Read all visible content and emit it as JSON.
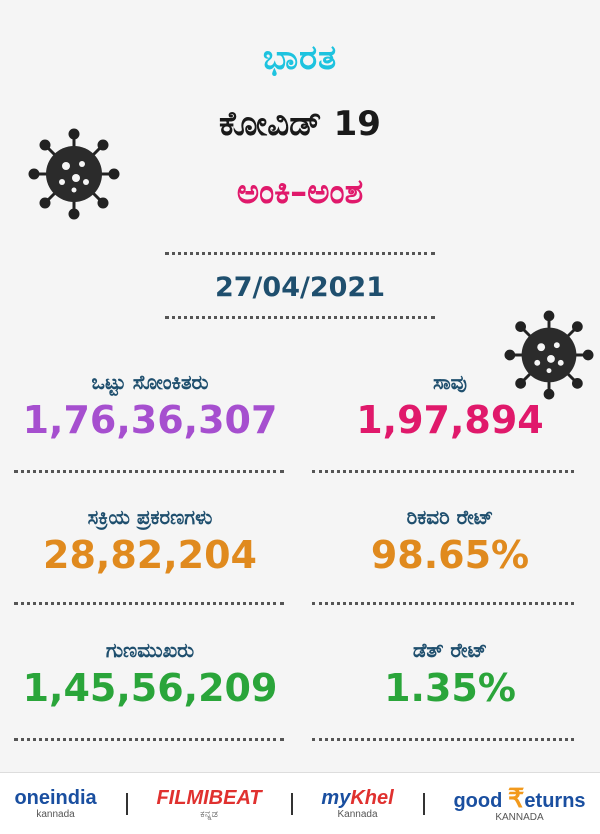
{
  "header": {
    "country": "ಭಾರತ",
    "title": "ಕೋವಿಡ್ 19",
    "subtitle": "ಅಂಕಿ–ಅಂಶ"
  },
  "date": "27/04/2021",
  "stats": {
    "total_cases": {
      "label": "ಒಟ್ಟು ಸೋಂಕಿತರು",
      "value": "1,76,36,307",
      "color": "#a64fcf"
    },
    "deaths": {
      "label": "ಸಾವು",
      "value": "1,97,894",
      "color": "#e0196b"
    },
    "active_cases": {
      "label": "ಸಕ್ರಿಯ ಪ್ರಕರಣಗಳು",
      "value": "28,82,204",
      "color": "#e08a1e"
    },
    "recovery_rate": {
      "label": "ರಿಕವರಿ ರೇಟ್",
      "value": "98.65%",
      "color": "#e08a1e"
    },
    "recovered": {
      "label": "ಗುಣಮುಖರು",
      "value": "1,45,56,209",
      "color": "#2aa53a"
    },
    "death_rate": {
      "label": "ಡೆತ್ ರೇಟ್",
      "value": "1.35%",
      "color": "#2aa53a"
    }
  },
  "footer": {
    "oneindia": {
      "name": "oneindia",
      "sub": "kannada"
    },
    "filmibeat": {
      "name": "FILMIBEAT",
      "sub": "ಕನ್ನಡ"
    },
    "mykhel": {
      "name_a": "my",
      "name_b": "Khel",
      "sub": "Kannada"
    },
    "goodreturns": {
      "name_a": "good",
      "name_b": "₹",
      "name_c": "eturns",
      "sub": "KANNADA"
    }
  }
}
